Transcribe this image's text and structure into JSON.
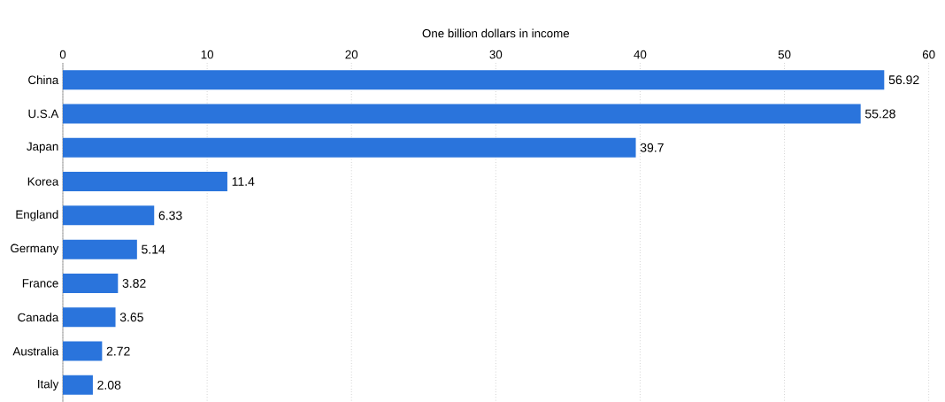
{
  "chart_data": {
    "type": "bar",
    "orientation": "horizontal",
    "xlabel": "One billion dollars in income",
    "categories": [
      "China",
      "U.S.A",
      "Japan",
      "Korea",
      "England",
      "Germany",
      "France",
      "Canada",
      "Australia",
      "Italy"
    ],
    "values": [
      56.92,
      55.28,
      39.7,
      11.4,
      6.33,
      5.14,
      3.82,
      3.65,
      2.72,
      2.08
    ],
    "color": "#2a74dc",
    "xlim": [
      0,
      60
    ],
    "xticks": [
      0,
      10,
      20,
      30,
      40,
      50,
      60
    ],
    "grid": "x",
    "data_labels": true
  }
}
